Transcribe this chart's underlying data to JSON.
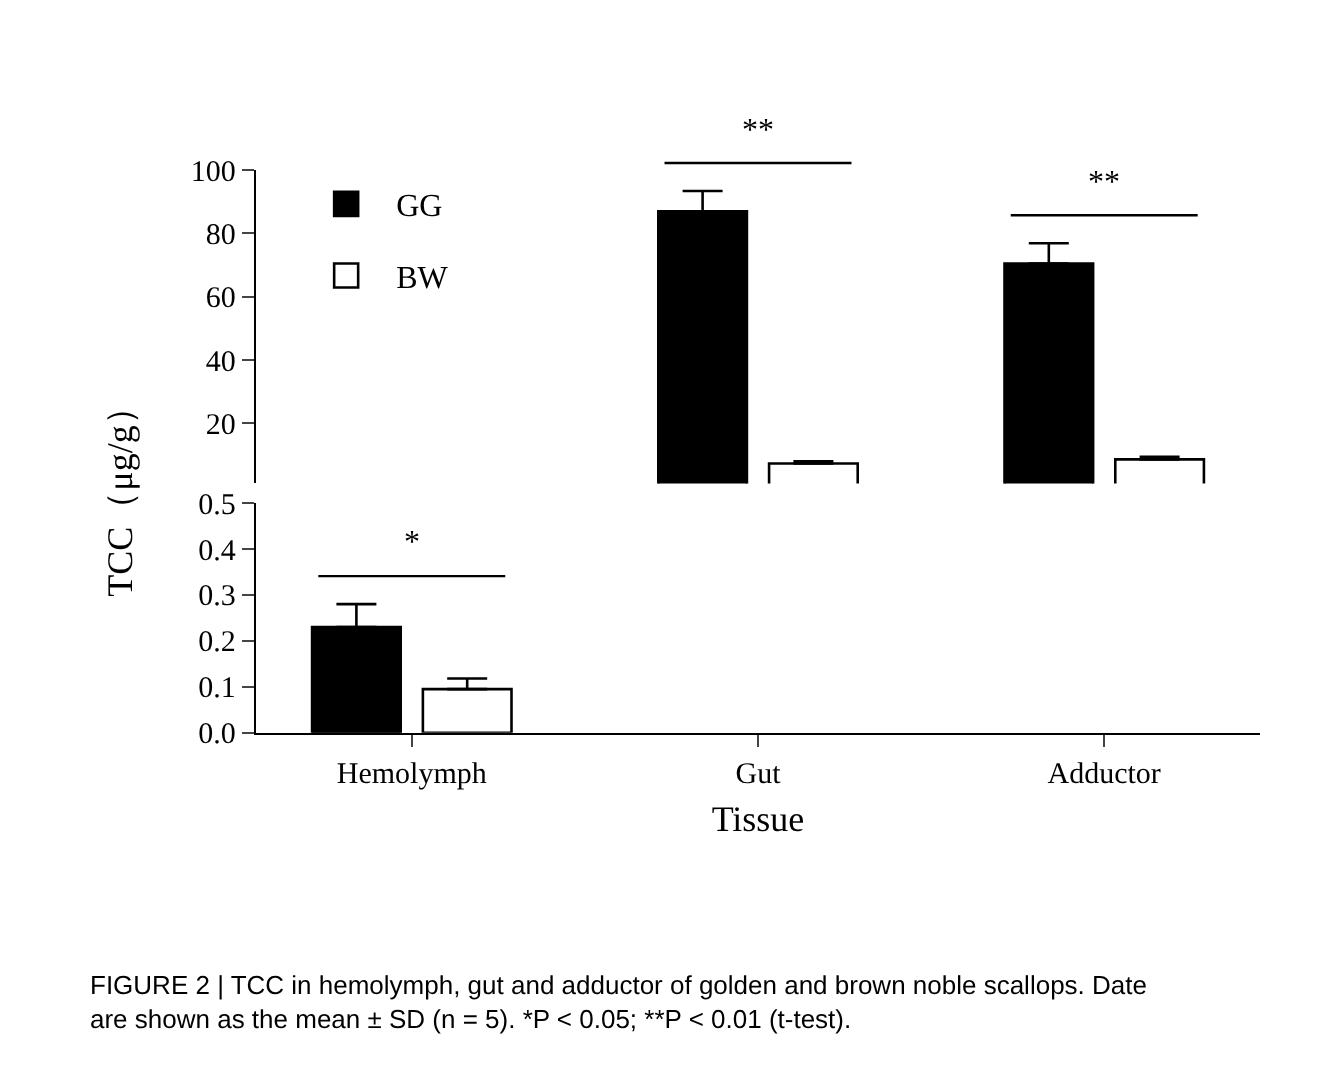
{
  "chart_data": [
    {
      "type": "bar",
      "categories": [
        "Hemolymph",
        "Gut",
        "Adductor"
      ],
      "ylabel": "TCC（μg/g）",
      "series": [
        {
          "name": "GG",
          "color": "#000000",
          "values": [
            null,
            87,
            70.5
          ],
          "errors": [
            null,
            [
              87,
              93.4
            ],
            [
              70.5,
              76.9
            ]
          ]
        },
        {
          "name": "BW",
          "color": "#ffffff",
          "values": [
            null,
            7.3,
            8.6
          ],
          "errors": [
            null,
            [
              7.3,
              8.0
            ],
            [
              8.6,
              9.4
            ]
          ]
        }
      ],
      "ylim": [
        1,
        100
      ],
      "yticks": [
        20,
        40,
        60,
        80,
        100
      ],
      "tick_labels": "y",
      "legend": "top left",
      "annotations": [
        "**",
        "**"
      ]
    },
    {
      "type": "bar",
      "categories": [
        "Hemolymph",
        "Gut",
        "Adductor"
      ],
      "xlabel": "Tissue",
      "series": [
        {
          "color": "#000000",
          "values": [
            0.23,
            null,
            null
          ],
          "errors": [
            [
              0.23,
              0.28
            ],
            null,
            null
          ]
        },
        {
          "color": "#ffffff",
          "values": [
            0.095,
            null,
            null
          ],
          "errors": [
            [
              0.095,
              0.118
            ],
            null,
            null
          ]
        }
      ],
      "ylim": [
        0,
        0.5
      ],
      "yticks": [
        {
          "value": 0,
          "label": "0.0"
        },
        0.1,
        0.2,
        0.3,
        0.4,
        0.5
      ],
      "legend": false,
      "annotations": [
        "*",
        "FIGURE 2 | TCC in hemolymph, gut and adductor of golden and brown noble scallops. Date are shown as the mean ± SD (n = 5). *P < 0.05; **P < 0.01 (t-test)."
      ]
    }
  ]
}
